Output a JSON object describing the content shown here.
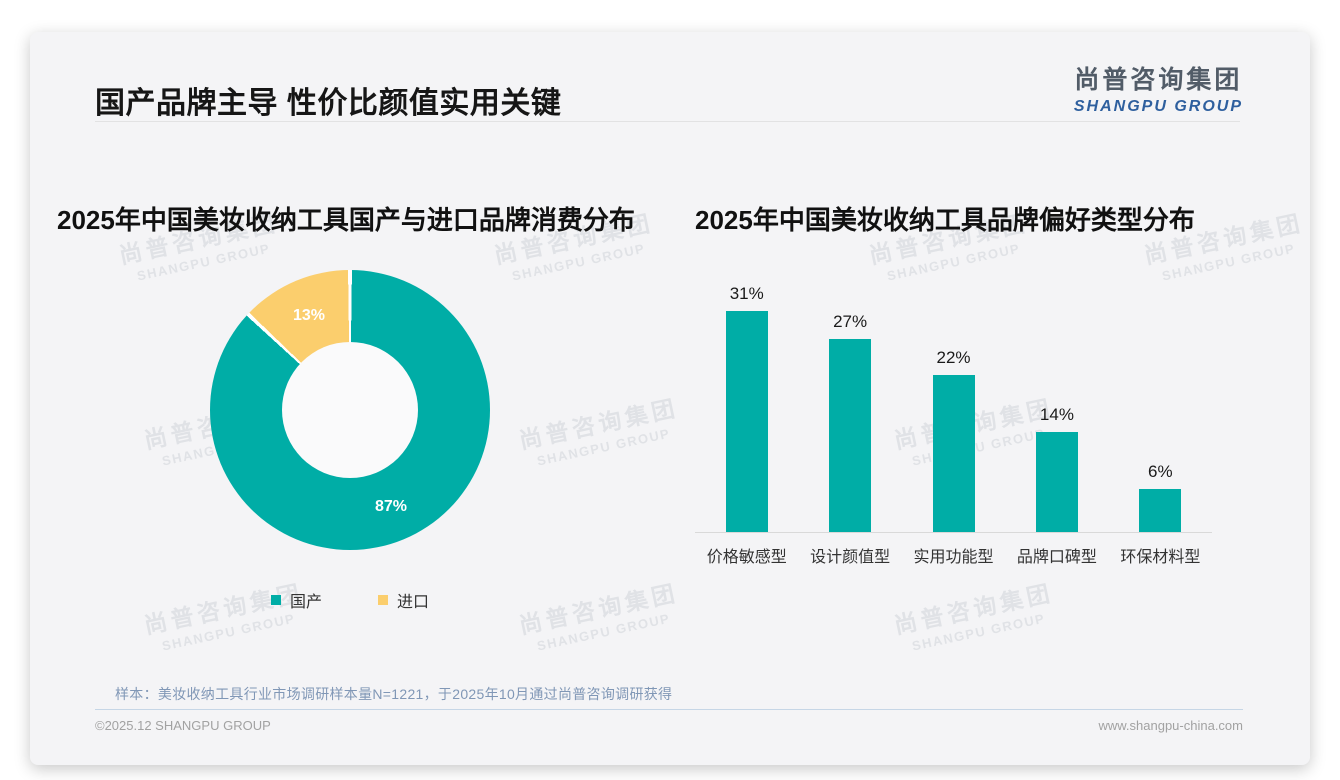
{
  "slide": {
    "title": "国产品牌主导 性价比颜值实用关键",
    "logo": {
      "cn": "尚普咨询集团",
      "en": "SHANGPU GROUP"
    },
    "watermark": {
      "cn": "尚普咨询集团",
      "en": "SHANGPU GROUP"
    },
    "footnote": "样本：美妆收纳工具行业市场调研样本量N=1221，于2025年10月通过尚普咨询调研获得",
    "copyright": "©2025.12 SHANGPU GROUP",
    "website": "www.shangpu-china.com"
  },
  "colors": {
    "teal": "#00ada6",
    "yellow": "#fbce6d"
  },
  "chart_data": [
    {
      "type": "pie",
      "subtype": "donut",
      "title": "2025年中国美妆收纳工具国产与进口品牌消费分布",
      "labels": [
        "国产",
        "进口"
      ],
      "values": [
        87,
        13
      ],
      "data_labels": [
        "87%",
        "13%"
      ],
      "colors": [
        "#00ada6",
        "#fbce6d"
      ],
      "start_angle_deg": 0,
      "direction": "clockwise",
      "legend_position": "bottom"
    },
    {
      "type": "bar",
      "title": "2025年中国美妆收纳工具品牌偏好类型分布",
      "categories": [
        "价格敏感型",
        "设计颜值型",
        "实用功能型",
        "品牌口碑型",
        "环保材料型"
      ],
      "values": [
        31,
        27,
        22,
        14,
        6
      ],
      "value_labels": [
        "31%",
        "27%",
        "22%",
        "14%",
        "6%"
      ],
      "bar_color": "#00ada6",
      "xlabel": "",
      "ylabel": "",
      "ylim": [
        0,
        35
      ],
      "grid": false,
      "legend_position": "none"
    }
  ]
}
